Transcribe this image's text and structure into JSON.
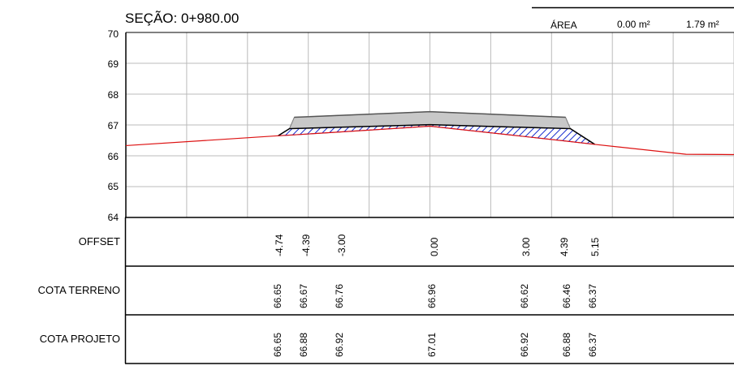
{
  "section_title": "SEÇÃO: 0+980.00",
  "area_table": {
    "header": "ÁREA",
    "values": [
      "0.00 m²",
      "1.79 m²"
    ]
  },
  "y_axis_ticks": [
    "70",
    "69",
    "68",
    "67",
    "66",
    "65",
    "64"
  ],
  "rows": [
    {
      "label": "OFFSET",
      "values": [
        "-4.74",
        "-4.39",
        "-3.00",
        "0.00",
        "3.00",
        "4.39",
        "5.15"
      ]
    },
    {
      "label": "COTA TERRENO",
      "values": [
        "66.65",
        "66.67",
        "66.76",
        "66.96",
        "66.62",
        "66.46",
        "66.37"
      ]
    },
    {
      "label": "COTA PROJETO",
      "values": [
        "66.65",
        "66.88",
        "66.92",
        "67.01",
        "66.92",
        "66.88",
        "66.37"
      ]
    }
  ],
  "chart_data": {
    "type": "line",
    "ylim": [
      64,
      70
    ],
    "xlim": [
      -9.5,
      9.5
    ],
    "series": [
      {
        "x": [
          -9.5,
          -4.74,
          -4.39,
          -3.0,
          0.0,
          3.0,
          4.39,
          5.15,
          8.0,
          9.5
        ],
        "y": [
          66.33,
          66.65,
          66.67,
          66.76,
          66.96,
          66.62,
          66.46,
          66.37,
          66.05,
          66.04
        ]
      },
      {
        "x": [
          -4.74,
          -4.39,
          -3.0,
          0.0,
          3.0,
          4.39,
          5.15
        ],
        "y": [
          66.65,
          66.88,
          66.92,
          67.01,
          66.92,
          66.88,
          66.37
        ]
      }
    ],
    "grid": true,
    "colors": {
      "terrain": "#dd1111",
      "fill_hatch": "#1a2fd0",
      "pavement": "#c8c8c8",
      "grid": "#bbbbbb"
    }
  }
}
